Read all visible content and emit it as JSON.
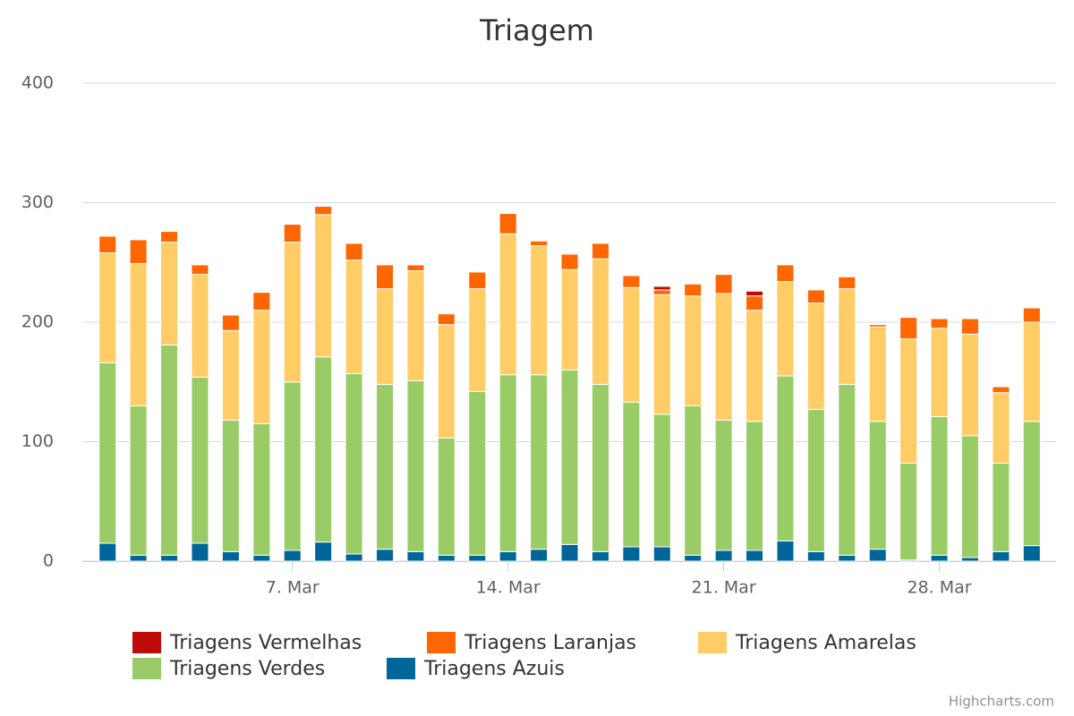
{
  "chart_data": {
    "type": "stacked-bar",
    "title": "Triagem",
    "categories": [
      null,
      null,
      null,
      null,
      null,
      null,
      "7. Mar",
      null,
      null,
      null,
      null,
      null,
      null,
      "14. Mar",
      null,
      null,
      null,
      null,
      null,
      null,
      "21. Mar",
      null,
      null,
      null,
      null,
      null,
      null,
      "28. Mar",
      null,
      null,
      null
    ],
    "series": [
      {
        "name": "Triagens Vermelhas",
        "color": "#bf0b0b",
        "values": [
          0,
          0,
          0,
          0,
          0,
          0,
          0,
          0,
          0,
          0,
          0,
          0,
          0,
          0,
          0,
          0,
          0,
          0,
          3,
          0,
          0,
          4,
          0,
          0,
          0,
          0,
          0,
          0,
          0,
          0,
          0
        ]
      },
      {
        "name": "Triagens Laranjas",
        "color": "#ff6600",
        "values": [
          14,
          20,
          9,
          8,
          13,
          15,
          15,
          7,
          14,
          20,
          5,
          9,
          14,
          17,
          4,
          13,
          13,
          10,
          4,
          10,
          16,
          12,
          14,
          11,
          10,
          2,
          18,
          8,
          13,
          5,
          12
        ]
      },
      {
        "name": "Triagens Amarelas",
        "color": "#ffcc66",
        "values": [
          92,
          119,
          86,
          86,
          75,
          95,
          117,
          119,
          95,
          80,
          92,
          95,
          86,
          118,
          108,
          84,
          105,
          96,
          100,
          92,
          106,
          93,
          79,
          89,
          80,
          79,
          104,
          74,
          85,
          59,
          83
        ]
      },
      {
        "name": "Triagens Verdes",
        "color": "#99cc66",
        "values": [
          151,
          125,
          176,
          139,
          110,
          110,
          141,
          155,
          151,
          138,
          143,
          98,
          137,
          148,
          146,
          146,
          140,
          121,
          111,
          125,
          109,
          108,
          138,
          119,
          143,
          107,
          81,
          116,
          102,
          74,
          104
        ]
      },
      {
        "name": "Triagens Azuis",
        "color": "#006699",
        "values": [
          15,
          5,
          5,
          15,
          8,
          5,
          9,
          16,
          6,
          10,
          8,
          5,
          5,
          8,
          10,
          14,
          8,
          12,
          12,
          5,
          9,
          9,
          17,
          8,
          5,
          10,
          1,
          5,
          3,
          8,
          13
        ]
      }
    ],
    "ylim": [
      0,
      400
    ],
    "yticks": [
      0,
      100,
      200,
      300,
      400
    ],
    "grid": true,
    "legend": "bottom",
    "credits": "Highcharts.com"
  }
}
